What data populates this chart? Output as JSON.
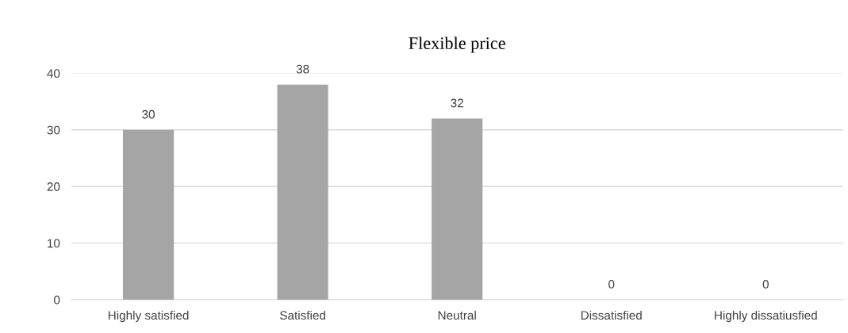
{
  "chart_data": {
    "type": "bar",
    "title": "Flexible price",
    "categories": [
      "Highly satisfied",
      "Satisfied",
      "Neutral",
      "Dissatisfied",
      "Highly dissatiusfied"
    ],
    "values": [
      30,
      38,
      32,
      0,
      0
    ],
    "color": "#a5a5a5",
    "ylim": [
      0,
      40
    ],
    "yticks": [
      0,
      10,
      20,
      30,
      40
    ],
    "grid": "y",
    "data_labels": true
  }
}
